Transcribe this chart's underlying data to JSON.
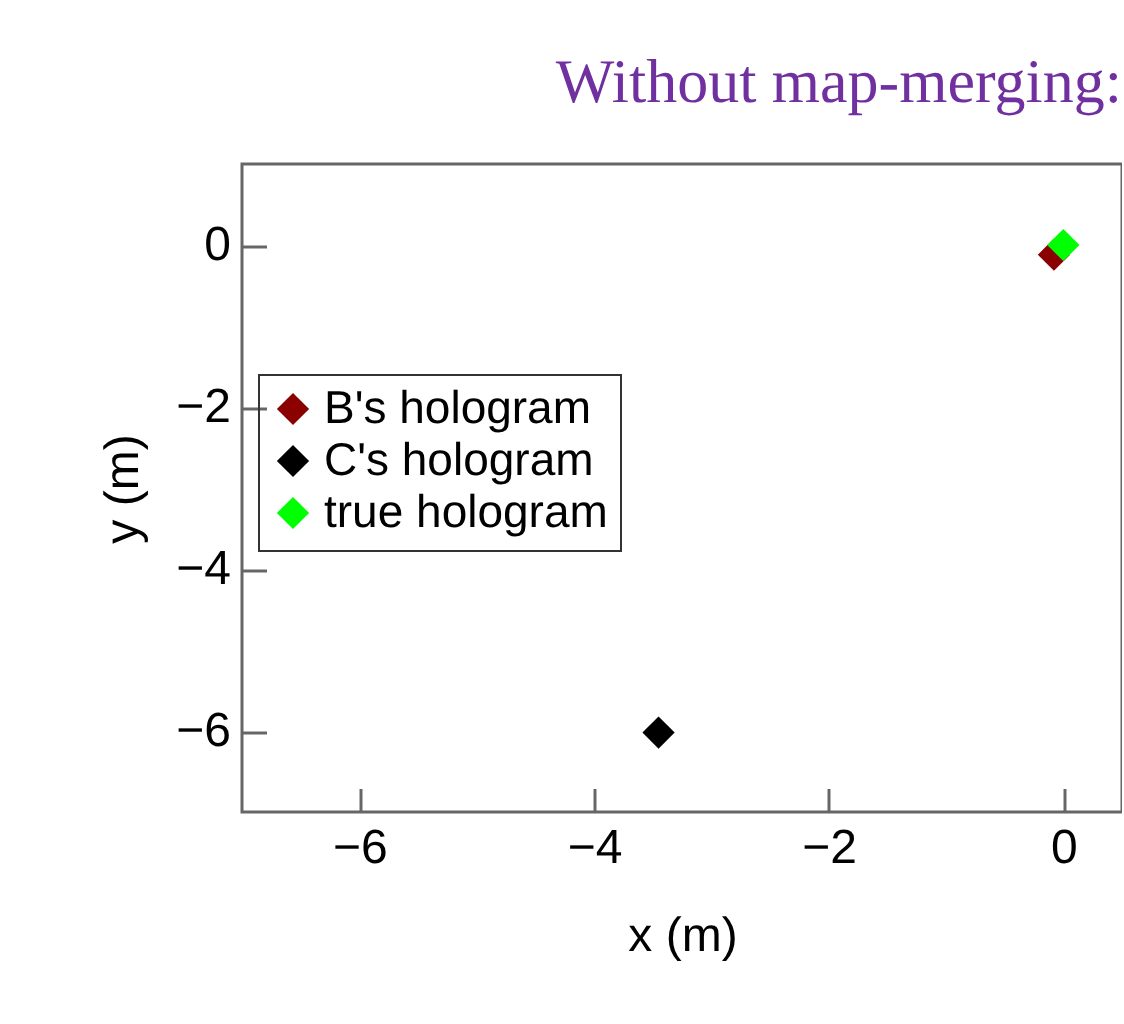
{
  "chart_data": {
    "type": "scatter",
    "title": "Without map-merging:",
    "xlabel": "x (m)",
    "ylabel": "y (m)",
    "series": [
      {
        "name": "B's hologram",
        "color": "#8b0000",
        "x": [
          -0.08
        ],
        "values": [
          -0.12
        ]
      },
      {
        "name": "C's hologram",
        "color": "#000000",
        "x": [
          -3.45
        ],
        "values": [
          -6.02
        ]
      },
      {
        "name": "true hologram",
        "color": "#00ff00",
        "x": [
          0.0
        ],
        "values": [
          0.0
        ]
      }
    ],
    "xlim": [
      -7,
      0.5
    ],
    "xticks": [
      -6,
      -4,
      -2,
      0
    ],
    "ylim": [
      -7,
      1
    ],
    "yticks": [
      -6,
      -4,
      -2,
      0
    ],
    "legend": "left",
    "marker": "diamond",
    "grid": false
  }
}
